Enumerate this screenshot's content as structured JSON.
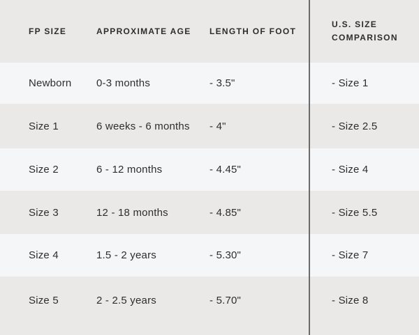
{
  "chart_data": {
    "type": "table",
    "columns": [
      "FP SIZE",
      "APPROXIMATE AGE",
      "LENGTH OF FOOT",
      "U.S. SIZE COMPARISON"
    ],
    "rows": [
      [
        "Newborn",
        "0-3 months",
        "- 3.5\"",
        "- Size 1"
      ],
      [
        "Size 1",
        "6 weeks - 6 months",
        "- 4\"",
        "- Size 2.5"
      ],
      [
        "Size 2",
        "6 - 12 months",
        "- 4.45\"",
        "- Size 4"
      ],
      [
        "Size 3",
        "12 - 18 months",
        "- 4.85\"",
        "- Size 5.5"
      ],
      [
        "Size 4",
        "1.5 - 2 years",
        "- 5.30\"",
        "- Size 7"
      ],
      [
        "Size 5",
        "2 - 2.5 years",
        "- 5.70\"",
        "- Size 8"
      ]
    ],
    "layout_hints": {
      "alternating_row_colors": true,
      "vertical_divider_before_last_column": true
    }
  },
  "colors": {
    "row_gray": "#eae9e7",
    "row_light": "#f5f6f7",
    "divider": "#6b6b6b",
    "text": "#2e2e2e"
  }
}
